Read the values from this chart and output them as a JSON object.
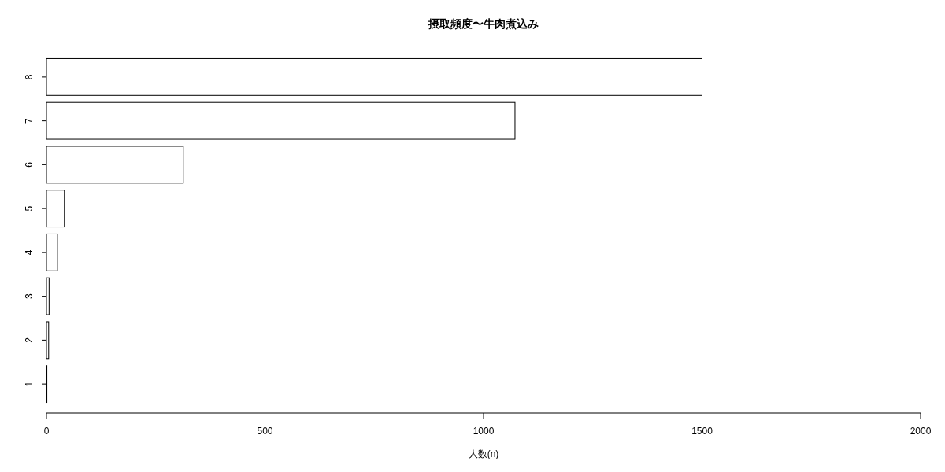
{
  "chart_data": {
    "type": "bar",
    "orientation": "horizontal",
    "title": "摂取頻度〜牛肉煮込み",
    "xlabel": "人数(n)",
    "categories": [
      "8",
      "7",
      "6",
      "5",
      "4",
      "3",
      "2",
      "1"
    ],
    "values": [
      1500,
      1072,
      313,
      41,
      25,
      6,
      5,
      1
    ],
    "color": "#ffffff",
    "xlim": [
      0,
      2000
    ],
    "xticks": [
      0,
      500,
      1000,
      1500,
      2000
    ],
    "grid": false
  }
}
